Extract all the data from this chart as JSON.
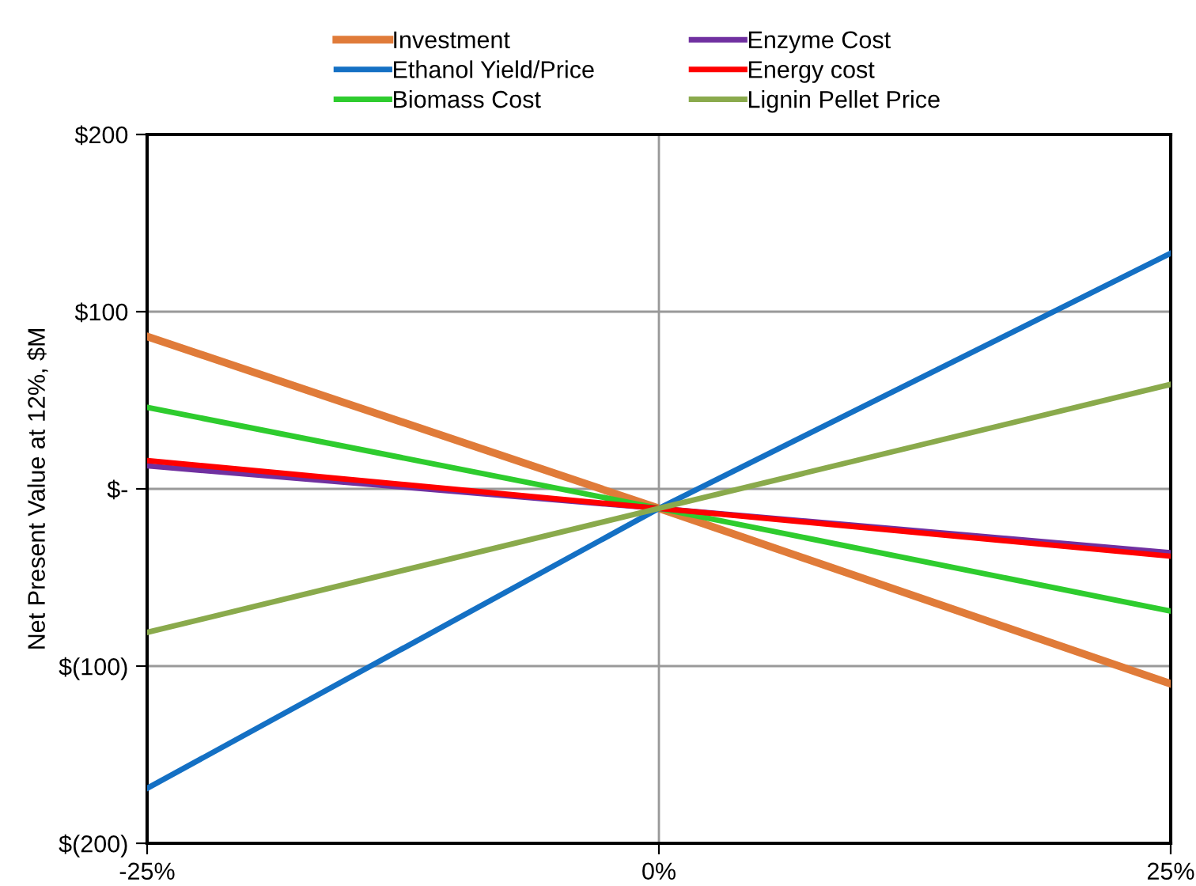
{
  "chart_data": {
    "type": "line",
    "ylabel": "Net Present Value at 12%, $M",
    "x": [
      -25,
      0,
      25
    ],
    "xlim": [
      -25,
      25
    ],
    "xticks": [
      {
        "value": -25,
        "label": "-25%"
      },
      {
        "value": 0,
        "label": "0%"
      },
      {
        "value": 25,
        "label": "25%"
      }
    ],
    "ylim": [
      -200,
      200
    ],
    "yticks": [
      {
        "value": -200,
        "label": "$(200)"
      },
      {
        "value": -100,
        "label": "$(100)"
      },
      {
        "value": 0,
        "label": "$-"
      },
      {
        "value": 100,
        "label": "$100"
      },
      {
        "value": 200,
        "label": "$200"
      }
    ],
    "grid": true,
    "legend": "top",
    "marker": "none",
    "line_style": "solid",
    "series": [
      {
        "name": "Investment",
        "color": "#e07b39",
        "values": [
          86,
          -11,
          -110
        ]
      },
      {
        "name": "Ethanol Yield/Price",
        "color": "#1470c4",
        "values": [
          -169,
          -11,
          133
        ]
      },
      {
        "name": "Biomass Cost",
        "color": "#2ecc2e",
        "values": [
          46,
          -11,
          -69
        ]
      },
      {
        "name": "Enzyme Cost",
        "color": "#7030a0",
        "values": [
          13,
          -11,
          -36
        ]
      },
      {
        "name": "Energy cost",
        "color": "#ff0000",
        "values": [
          16,
          -11,
          -38
        ]
      },
      {
        "name": "Lignin Pellet Price",
        "color": "#8aaa4c",
        "values": [
          -81,
          -11,
          59
        ]
      }
    ]
  }
}
